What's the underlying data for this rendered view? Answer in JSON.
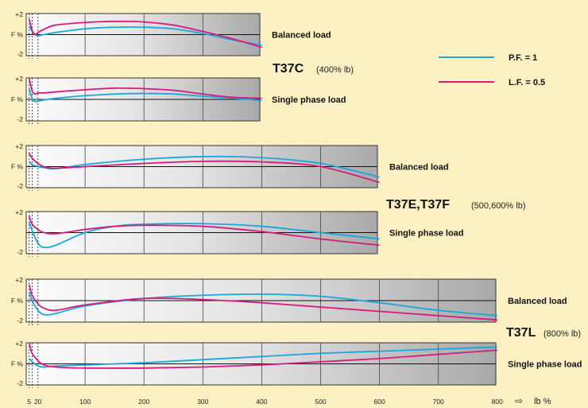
{
  "legend": {
    "items": [
      {
        "label": "P.F. = 1",
        "color": "#1aa6df"
      },
      {
        "label": "L.F. = 0.5",
        "color": "#d81b7a"
      }
    ]
  },
  "labels": {
    "y_top": "+2",
    "y_mid": "F %",
    "y_bottom": "-2",
    "x_unit": "lb %",
    "x_arrow": "⇨"
  },
  "x_axis_ticks": [
    5,
    20,
    100,
    200,
    300,
    400,
    500,
    600,
    700,
    800
  ],
  "groups": [
    {
      "model": "T37C",
      "sub": "(400% lb)"
    },
    {
      "model": "T37E,T37F",
      "sub": "(500,600% lb)"
    },
    {
      "model": "T37L",
      "sub": "(800% lb)"
    }
  ],
  "chart_data": [
    {
      "type": "line",
      "group": "T37C",
      "title": "Balanced load",
      "xlim": [
        0,
        400
      ],
      "ylim": [
        -2,
        2
      ],
      "ylabel": "F %",
      "xlabel": "lb %",
      "series": [
        {
          "name": "P.F. = 1",
          "color": "#1aa6df",
          "x": [
            5,
            10,
            15,
            20,
            30,
            50,
            100,
            150,
            200,
            250,
            300,
            350,
            400
          ],
          "y": [
            0.8,
            0.3,
            0.0,
            -0.1,
            0.0,
            0.2,
            0.55,
            0.7,
            0.7,
            0.55,
            0.1,
            -0.5,
            -1.0
          ]
        },
        {
          "name": "L.F. = 0.5",
          "color": "#d81b7a",
          "x": [
            5,
            10,
            15,
            20,
            30,
            50,
            100,
            150,
            200,
            250,
            300,
            350,
            400
          ],
          "y": [
            1.5,
            0.4,
            0.0,
            0.2,
            0.5,
            0.9,
            1.15,
            1.25,
            1.2,
            0.9,
            0.3,
            -0.4,
            -1.2
          ]
        }
      ]
    },
    {
      "type": "line",
      "group": "T37C",
      "title": "Single phase load",
      "xlim": [
        0,
        400
      ],
      "ylim": [
        -2,
        2
      ],
      "ylabel": "F %",
      "xlabel": "lb %",
      "series": [
        {
          "name": "P.F. = 1",
          "color": "#1aa6df",
          "x": [
            5,
            10,
            15,
            20,
            30,
            50,
            100,
            150,
            200,
            250,
            300,
            350,
            400
          ],
          "y": [
            1.0,
            0.1,
            -0.2,
            -0.15,
            -0.05,
            0.1,
            0.35,
            0.5,
            0.55,
            0.5,
            0.3,
            0.1,
            -0.1
          ]
        },
        {
          "name": "L.F. = 0.5",
          "color": "#d81b7a",
          "x": [
            5,
            10,
            15,
            20,
            30,
            50,
            100,
            150,
            200,
            250,
            300,
            350,
            400
          ],
          "y": [
            2.0,
            0.8,
            0.5,
            0.6,
            0.6,
            0.7,
            0.9,
            1.05,
            1.0,
            0.85,
            0.5,
            0.2,
            0.1
          ]
        }
      ]
    },
    {
      "type": "line",
      "group": "T37E,T37F",
      "title": "Balanced load",
      "xlim": [
        0,
        600
      ],
      "ylim": [
        -2,
        2
      ],
      "ylabel": "F %",
      "xlabel": "lb %",
      "series": [
        {
          "name": "P.F. = 1",
          "color": "#1aa6df",
          "x": [
            5,
            10,
            20,
            30,
            50,
            100,
            200,
            300,
            400,
            500,
            600
          ],
          "y": [
            0.5,
            0.2,
            0.0,
            -0.1,
            -0.2,
            0.2,
            0.7,
            0.95,
            0.85,
            0.3,
            -1.0
          ]
        },
        {
          "name": "L.F. = 0.5",
          "color": "#d81b7a",
          "x": [
            5,
            10,
            20,
            30,
            50,
            100,
            200,
            300,
            400,
            500,
            600
          ],
          "y": [
            1.3,
            0.8,
            0.3,
            0.0,
            -0.15,
            0.0,
            0.3,
            0.5,
            0.45,
            0.0,
            -1.5
          ]
        }
      ]
    },
    {
      "type": "line",
      "group": "T37E,T37F",
      "title": "Single phase load",
      "xlim": [
        0,
        600
      ],
      "ylim": [
        -2,
        2
      ],
      "ylabel": "",
      "xlabel": "lb %",
      "series": [
        {
          "name": "P.F. = 1",
          "color": "#1aa6df",
          "x": [
            5,
            10,
            20,
            30,
            50,
            100,
            150,
            200,
            300,
            400,
            500,
            600
          ],
          "y": [
            1.0,
            0.2,
            -1.0,
            -1.4,
            -1.2,
            0.0,
            0.6,
            0.8,
            0.85,
            0.6,
            0.0,
            -0.6
          ]
        },
        {
          "name": "L.F. = 0.5",
          "color": "#d81b7a",
          "x": [
            5,
            10,
            20,
            30,
            50,
            100,
            150,
            200,
            300,
            400,
            500,
            600
          ],
          "y": [
            1.6,
            0.8,
            0.3,
            0.0,
            -0.1,
            0.3,
            0.6,
            0.7,
            0.6,
            0.1,
            -0.6,
            -1.2
          ]
        }
      ]
    },
    {
      "type": "line",
      "group": "T37L",
      "title": "Balanced load",
      "xlim": [
        0,
        800
      ],
      "ylim": [
        -2,
        2
      ],
      "ylabel": "F %",
      "xlabel": "lb %",
      "series": [
        {
          "name": "P.F. = 1",
          "color": "#1aa6df",
          "x": [
            5,
            10,
            20,
            30,
            50,
            100,
            200,
            300,
            400,
            500,
            600,
            700,
            800
          ],
          "y": [
            0.8,
            0.0,
            -0.9,
            -1.3,
            -1.2,
            -0.5,
            0.2,
            0.5,
            0.6,
            0.4,
            -0.2,
            -0.9,
            -1.4
          ]
        },
        {
          "name": "L.F. = 0.5",
          "color": "#d81b7a",
          "x": [
            5,
            10,
            20,
            30,
            50,
            100,
            200,
            300,
            400,
            500,
            600,
            700,
            800
          ],
          "y": [
            1.5,
            0.5,
            -0.3,
            -0.7,
            -0.9,
            -0.4,
            0.2,
            0.1,
            -0.2,
            -0.6,
            -1.0,
            -1.4,
            -1.8
          ]
        }
      ]
    },
    {
      "type": "line",
      "group": "T37L",
      "title": "Single phase load",
      "xlim": [
        0,
        800
      ],
      "ylim": [
        -2,
        2
      ],
      "ylabel": "F %",
      "xlabel": "lb %",
      "series": [
        {
          "name": "P.F. = 1",
          "color": "#1aa6df",
          "x": [
            5,
            10,
            20,
            30,
            50,
            100,
            200,
            300,
            400,
            500,
            600,
            700,
            800
          ],
          "y": [
            0.5,
            0.2,
            -0.2,
            -0.3,
            -0.2,
            -0.1,
            0.1,
            0.4,
            0.7,
            1.0,
            1.2,
            1.4,
            1.6
          ]
        },
        {
          "name": "L.F. = 0.5",
          "color": "#d81b7a",
          "x": [
            5,
            10,
            20,
            30,
            50,
            100,
            200,
            300,
            400,
            500,
            600,
            700,
            800
          ],
          "y": [
            2.0,
            1.0,
            0.3,
            -0.1,
            -0.3,
            -0.4,
            -0.4,
            -0.3,
            -0.1,
            0.2,
            0.5,
            0.9,
            1.3
          ]
        }
      ]
    }
  ]
}
